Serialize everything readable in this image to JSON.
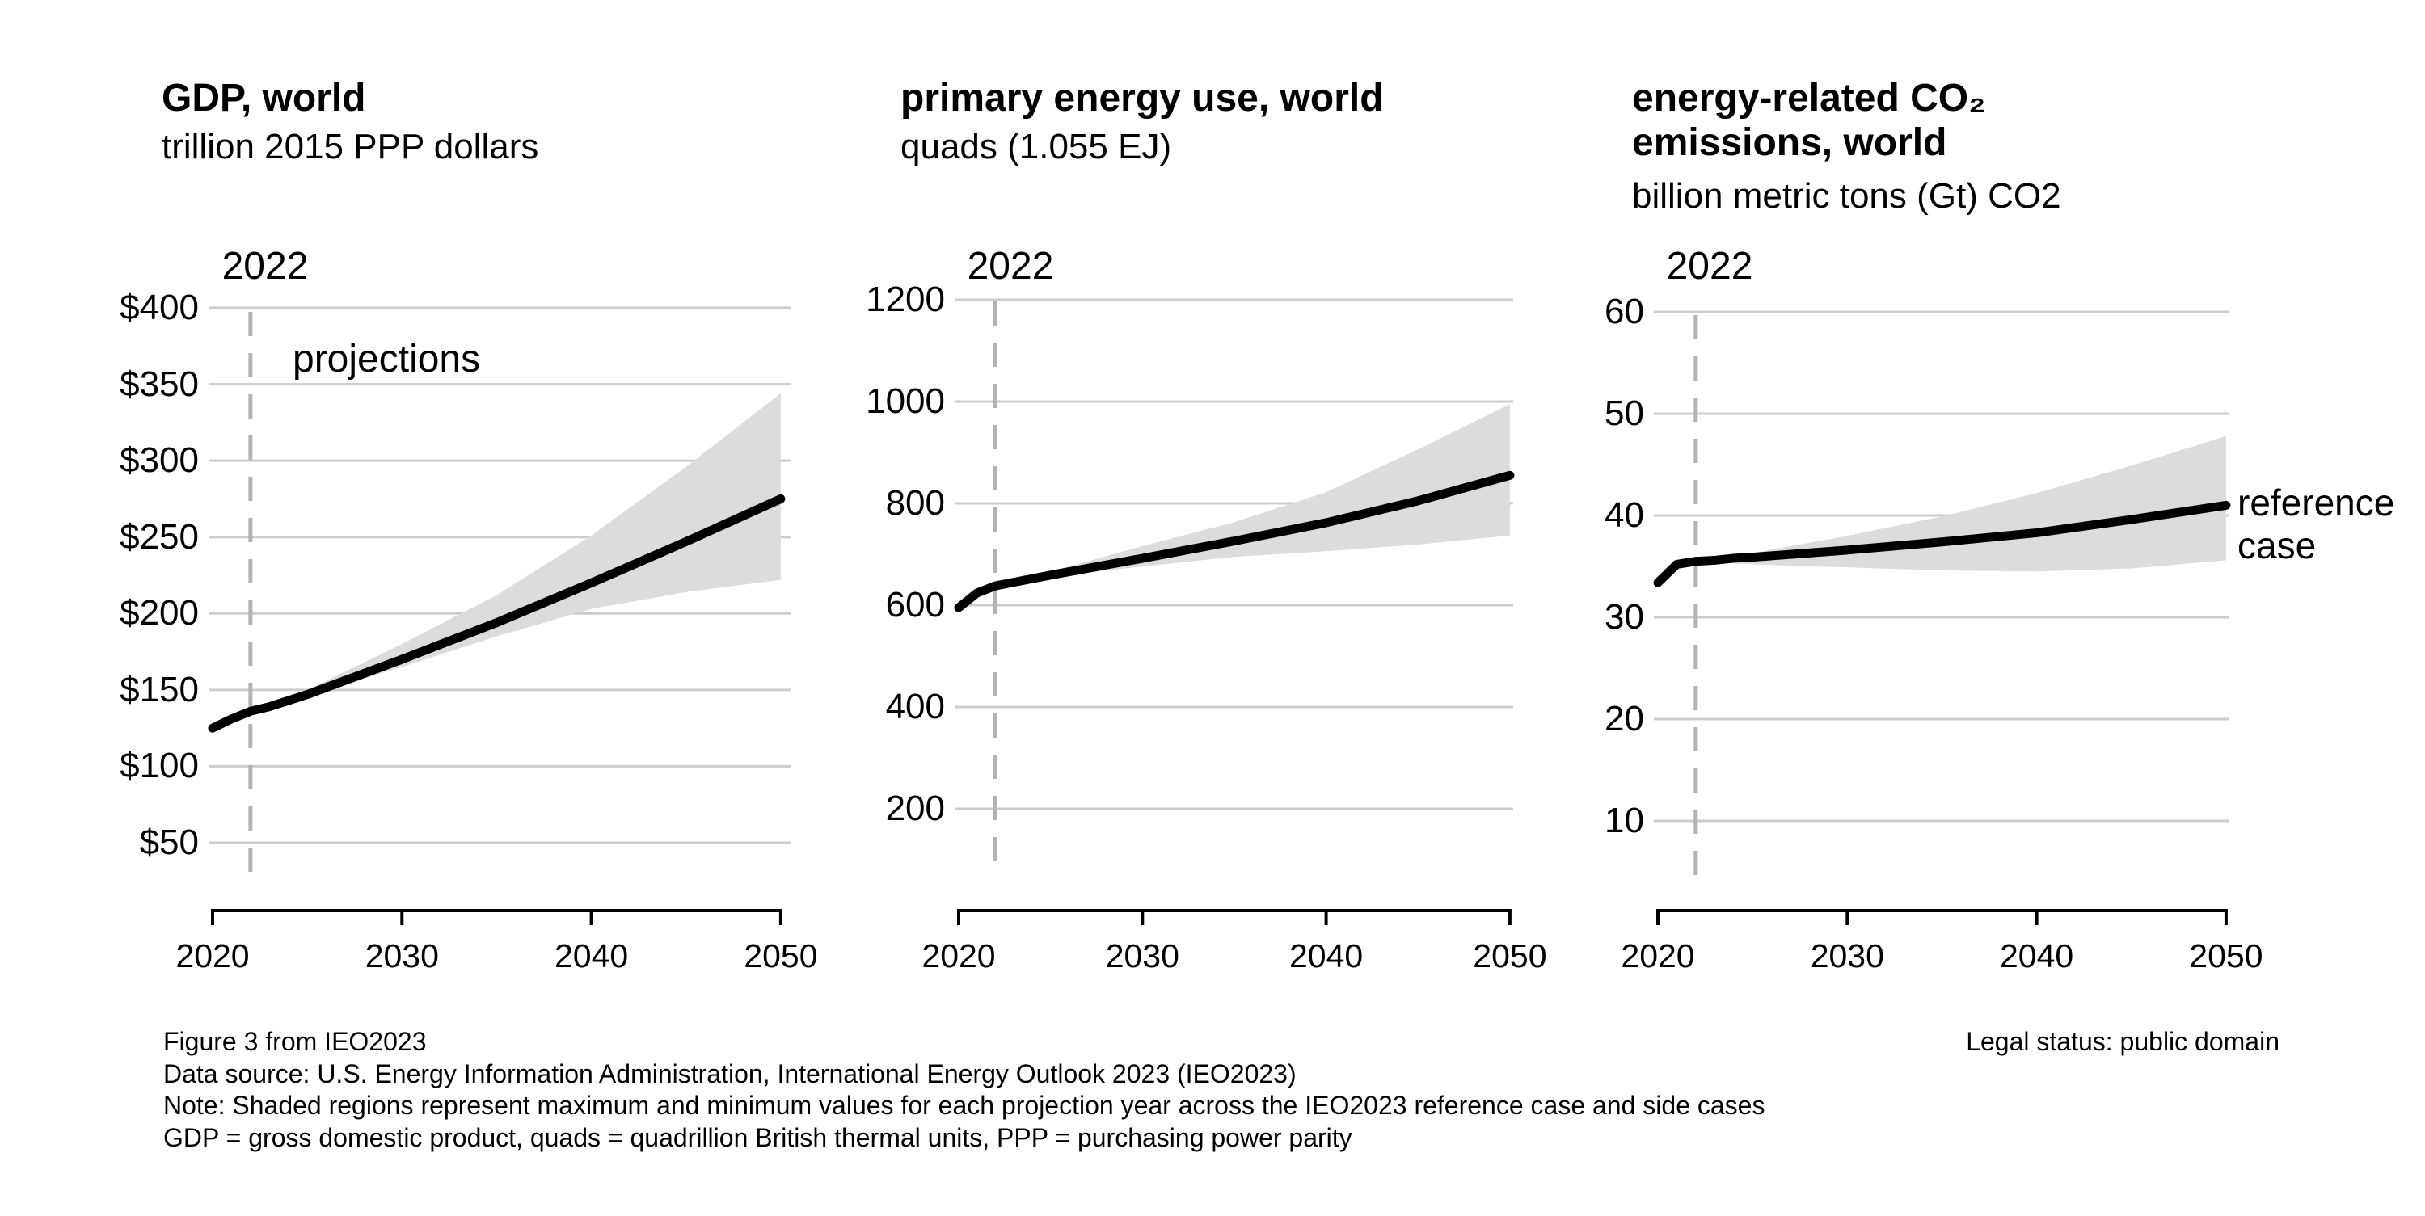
{
  "figure": {
    "panels": [
      {
        "title": "GDP, world",
        "subtitle": "trillion 2015 PPP dollars",
        "annotation_year": "2022",
        "annotation_projections": "projections"
      },
      {
        "title": "primary energy use, world",
        "subtitle": "quads (1.055 EJ)",
        "annotation_year": "2022"
      },
      {
        "title": "energy-related CO₂\nemissions, world",
        "subtitle": "billion metric tons (Gt) CO2",
        "annotation_year": "2022",
        "annotation_reference": "reference\ncase"
      }
    ],
    "footer": {
      "line1": "Figure 3 from IEO2023",
      "line2": "Data source: U.S. Energy Information Administration, International Energy Outlook 2023 (IEO2023)",
      "line3": "Note: Shaded regions represent maximum and minimum values for each projection year across the IEO2023 reference case and side cases",
      "line4": "GDP = gross domestic product, quads = quadrillion British thermal units, PPP = purchasing power parity",
      "legal": "Legal status: public domain"
    },
    "colors": {
      "line": "#000000",
      "band": "#dcdcdc",
      "gridline": "#cccccc",
      "dashed_marker": "#b3b3b3",
      "background": "#ffffff"
    }
  },
  "chart_data": [
    {
      "type": "line",
      "title": "GDP, world",
      "ylabel": "trillion 2015 PPP dollars",
      "xlabel": "",
      "xlim": [
        2020,
        2050
      ],
      "history_end_year": 2022,
      "grid": "horizontal",
      "legend_position": "none",
      "x": [
        2020,
        2021,
        2022,
        2023,
        2024,
        2025,
        2030,
        2035,
        2040,
        2045,
        2050
      ],
      "series": [
        {
          "name": "reference case",
          "values": [
            125,
            131,
            136,
            139,
            143,
            147,
            170,
            194,
            220,
            247,
            275
          ]
        }
      ],
      "band": {
        "name": "max-min range across IEO2023 reference case and side cases",
        "x": [
          2022,
          2023,
          2024,
          2025,
          2030,
          2035,
          2040,
          2045,
          2050
        ],
        "max": [
          136,
          140,
          145,
          150,
          180,
          212,
          251,
          296,
          344
        ],
        "min": [
          136,
          139,
          142,
          146,
          165,
          185,
          203,
          214,
          222
        ]
      },
      "y_tick_values": [
        400,
        350,
        300,
        250,
        200,
        150,
        100,
        50
      ],
      "y_tick_labels": [
        "$400",
        "$350",
        "$300",
        "$250",
        "$200",
        "$150",
        "$100",
        "$50"
      ],
      "x_tick_values": [
        2020,
        2030,
        2040,
        2050
      ],
      "x_tick_labels": [
        "2020",
        "2030",
        "2040",
        "2050"
      ]
    },
    {
      "type": "line",
      "title": "primary energy use, world",
      "ylabel": "quads (1.055 EJ)",
      "xlabel": "",
      "xlim": [
        2020,
        2050
      ],
      "history_end_year": 2022,
      "grid": "horizontal",
      "legend_position": "none",
      "x": [
        2020,
        2021,
        2022,
        2023,
        2024,
        2025,
        2030,
        2035,
        2040,
        2045,
        2050
      ],
      "series": [
        {
          "name": "reference case",
          "values": [
            595,
            624,
            638,
            645,
            652,
            659,
            692,
            726,
            762,
            805,
            855
          ]
        }
      ],
      "band": {
        "name": "max-min range across IEO2023 reference case and side cases",
        "x": [
          2022,
          2023,
          2024,
          2025,
          2030,
          2035,
          2040,
          2045,
          2050
        ],
        "max": [
          638,
          647,
          656,
          666,
          716,
          763,
          822,
          906,
          995
        ],
        "min": [
          638,
          644,
          650,
          655,
          676,
          695,
          706,
          719,
          737
        ]
      },
      "y_tick_values": [
        1200,
        1000,
        800,
        600,
        400,
        200
      ],
      "y_tick_labels": [
        "1200",
        "1000",
        "800",
        "600",
        "400",
        "200"
      ],
      "x_tick_values": [
        2020,
        2030,
        2040,
        2050
      ],
      "x_tick_labels": [
        "2020",
        "2030",
        "2040",
        "2050"
      ]
    },
    {
      "type": "line",
      "title": "energy-related CO2 emissions, world",
      "ylabel": "billion metric tons (Gt) CO2",
      "xlabel": "",
      "xlim": [
        2020,
        2050
      ],
      "history_end_year": 2022,
      "grid": "horizontal",
      "legend_position": "annotation right of line end",
      "x": [
        2020,
        2021,
        2022,
        2023,
        2024,
        2025,
        2030,
        2035,
        2040,
        2045,
        2050
      ],
      "series": [
        {
          "name": "reference case",
          "values": [
            33.4,
            35.2,
            35.5,
            35.6,
            35.8,
            35.9,
            36.6,
            37.4,
            38.3,
            39.6,
            41.0
          ]
        }
      ],
      "band": {
        "name": "max-min range across IEO2023 reference case and side cases",
        "x": [
          2022,
          2023,
          2024,
          2025,
          2030,
          2035,
          2040,
          2045,
          2050
        ],
        "max": [
          35.5,
          35.7,
          36.0,
          36.3,
          38.0,
          39.9,
          42.2,
          44.9,
          47.8
        ],
        "min": [
          35.5,
          35.5,
          35.3,
          35.2,
          34.9,
          34.6,
          34.5,
          34.8,
          35.6
        ]
      },
      "y_tick_values": [
        60,
        50,
        40,
        30,
        20,
        10
      ],
      "y_tick_labels": [
        "60",
        "50",
        "40",
        "30",
        "20",
        "10"
      ],
      "x_tick_values": [
        2020,
        2030,
        2040,
        2050
      ],
      "x_tick_labels": [
        "2020",
        "2030",
        "2040",
        "2050"
      ]
    }
  ]
}
